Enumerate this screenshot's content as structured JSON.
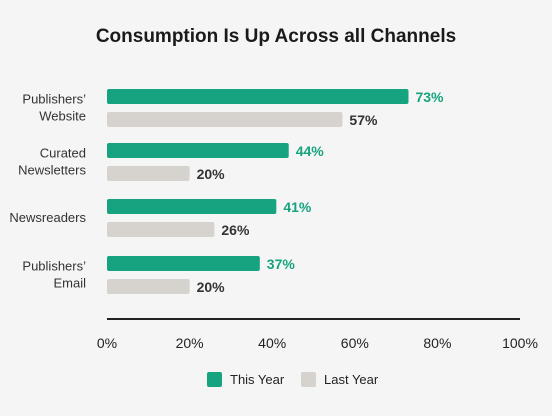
{
  "colors": {
    "this_year": "#16a37f",
    "last_year": "#d6d3cf",
    "axis": "#222222",
    "this_year_label": "#16a37f",
    "last_year_label": "#333333"
  },
  "chart_data": {
    "type": "bar",
    "orientation": "horizontal",
    "title": "Consumption Is Up Across all Channels",
    "categories": [
      [
        "Publishers’",
        "Website"
      ],
      [
        "Curated",
        "Newsletters"
      ],
      [
        "Newsreaders"
      ],
      [
        "Publishers’",
        "Email"
      ]
    ],
    "series": [
      {
        "name": "This Year",
        "values": [
          73,
          44,
          41,
          37
        ],
        "labels": [
          "73%",
          "44%",
          "41%",
          "37%"
        ]
      },
      {
        "name": "Last Year",
        "values": [
          57,
          20,
          26,
          20
        ],
        "labels": [
          "57%",
          "20%",
          "26%",
          "20%"
        ]
      }
    ],
    "xlim": [
      0,
      100
    ],
    "xticks": [
      "0%",
      "20%",
      "40%",
      "60%",
      "80%",
      "100%"
    ],
    "legend_position": "bottom",
    "grid": false
  }
}
